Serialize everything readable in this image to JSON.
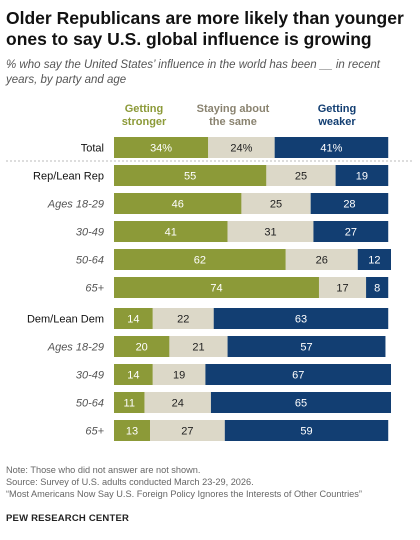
{
  "title": "Older Republicans are more likely than younger ones to say U.S. global influence is growing",
  "subtitle": "% who say the United States’ influence in the world has been __ in recent years, by party and age",
  "notes": {
    "note": "Note: Those who did not answer are not shown.",
    "source": "Source: Survey of U.S. adults conducted March 23-29, 2026.",
    "report": "“Most Americans Now Say U.S. Foreign Policy Ignores the Interests of Other Countries”"
  },
  "brand": "PEW RESEARCH CENTER",
  "colors": {
    "stronger": "#8c9a38",
    "same": "#dcd8c8",
    "weaker": "#123e72"
  },
  "chart_data": {
    "type": "bar",
    "orientation": "horizontal",
    "stacked": true,
    "xlim": [
      0,
      100
    ],
    "grid": false,
    "legend": "top",
    "series": [
      {
        "name": "Getting stronger",
        "label_lines": [
          "Getting",
          "stronger"
        ],
        "values": [
          34,
          55,
          46,
          41,
          62,
          74,
          14,
          20,
          14,
          11,
          13
        ]
      },
      {
        "name": "Staying about the same",
        "label_lines": [
          "Staying about",
          "the same"
        ],
        "values": [
          24,
          25,
          25,
          31,
          26,
          17,
          22,
          21,
          19,
          24,
          27
        ]
      },
      {
        "name": "Getting weaker",
        "label_lines": [
          "Getting",
          "weaker"
        ],
        "values": [
          41,
          19,
          28,
          27,
          12,
          8,
          63,
          57,
          67,
          65,
          59
        ]
      }
    ],
    "rows": [
      {
        "label": "Total",
        "italic": false,
        "display": [
          "34%",
          "24%",
          "41%"
        ]
      },
      {
        "label": "Rep/Lean Rep",
        "italic": false,
        "display": [
          "55",
          "25",
          "19"
        ]
      },
      {
        "label": "Ages 18-29",
        "italic": true,
        "display": [
          "46",
          "25",
          "28"
        ]
      },
      {
        "label": "30-49",
        "italic": true,
        "display": [
          "41",
          "31",
          "27"
        ]
      },
      {
        "label": "50-64",
        "italic": true,
        "display": [
          "62",
          "26",
          "12"
        ]
      },
      {
        "label": "65+",
        "italic": true,
        "display": [
          "74",
          "17",
          "8"
        ]
      },
      {
        "label": "Dem/Lean Dem",
        "italic": false,
        "display": [
          "14",
          "22",
          "63"
        ]
      },
      {
        "label": "Ages 18-29",
        "italic": true,
        "display": [
          "20",
          "21",
          "57"
        ]
      },
      {
        "label": "30-49",
        "italic": true,
        "display": [
          "14",
          "19",
          "67"
        ]
      },
      {
        "label": "50-64",
        "italic": true,
        "display": [
          "11",
          "24",
          "65"
        ]
      },
      {
        "label": "65+",
        "italic": true,
        "display": [
          "13",
          "27",
          "59"
        ]
      }
    ]
  }
}
